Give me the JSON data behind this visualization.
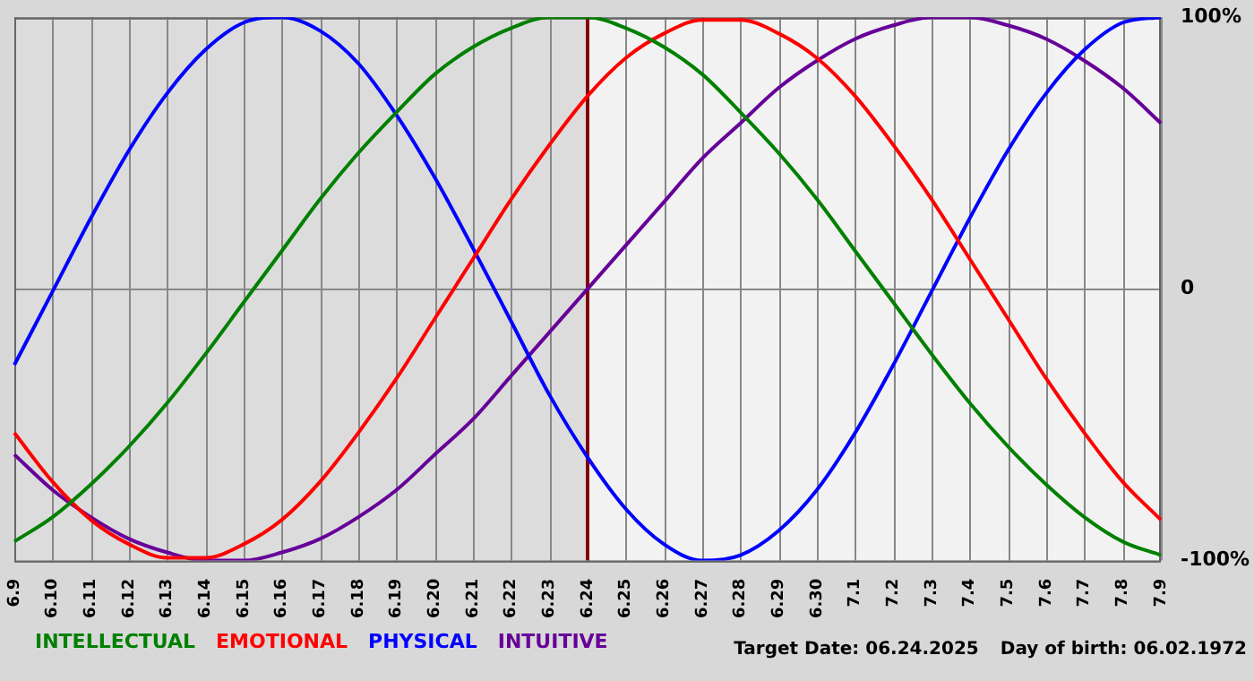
{
  "chart_data": {
    "type": "line",
    "categories": [
      "6.9",
      "6.10",
      "6.11",
      "6.12",
      "6.13",
      "6.14",
      "6.15",
      "6.16",
      "6.17",
      "6.18",
      "6.19",
      "6.20",
      "6.21",
      "6.22",
      "6.23",
      "6.24",
      "6.25",
      "6.26",
      "6.27",
      "6.28",
      "6.29",
      "6.30",
      "7.1",
      "7.2",
      "7.3",
      "7.4",
      "7.5",
      "7.6",
      "7.7",
      "7.8",
      "7.9"
    ],
    "series": [
      {
        "name": "INTELLECTUAL",
        "color": "#008000",
        "values": [
          -93,
          -84,
          -72,
          -58,
          -42,
          -24,
          -5,
          14,
          33,
          50,
          65,
          79,
          89,
          96,
          100,
          100,
          96,
          89,
          79,
          65,
          50,
          33,
          14,
          -5,
          -24,
          -42,
          -58,
          -72,
          -84,
          -93,
          -98
        ]
      },
      {
        "name": "EMOTIONAL",
        "color": "#ff0000",
        "values": [
          -53,
          -71,
          -85,
          -94,
          -99,
          -99,
          -94,
          -85,
          -71,
          -53,
          -33,
          -11,
          11,
          33,
          53,
          71,
          85,
          94,
          99,
          99,
          94,
          85,
          71,
          53,
          33,
          11,
          -11,
          -33,
          -53,
          -71,
          -85
        ]
      },
      {
        "name": "PHYSICAL",
        "color": "#0000ff",
        "values": [
          -28,
          -1,
          26,
          51,
          72,
          88,
          98,
          100,
          95,
          83,
          64,
          41,
          15,
          -12,
          -39,
          -62,
          -81,
          -94,
          -100,
          -98,
          -89,
          -74,
          -53,
          -28,
          -1,
          26,
          51,
          72,
          88,
          98,
          100
        ]
      },
      {
        "name": "INTUITIVE",
        "color": "#660099",
        "values": [
          -61,
          -74,
          -84,
          -92,
          -97,
          -100,
          -100,
          -97,
          -92,
          -84,
          -74,
          -61,
          -48,
          -32,
          -16,
          0,
          16,
          32,
          48,
          61,
          74,
          84,
          92,
          97,
          100,
          100,
          97,
          92,
          84,
          74,
          61
        ]
      }
    ],
    "ylim": [
      -100,
      100
    ],
    "yticks": [
      {
        "value": -100,
        "label": "-100%"
      },
      0,
      {
        "value": 100,
        "label": "100%"
      }
    ],
    "grid": true,
    "legend": "bottom left",
    "marker": "none",
    "line_style": "solid",
    "ref_lines": [
      {
        "axis": "x",
        "value": "6.24",
        "color": "#800000"
      }
    ],
    "bands": [
      {
        "axis": "x",
        "from": "6.9",
        "to": "6.24",
        "color": "#dcdcdc"
      }
    ],
    "annotations": [
      "Target Date: 06.24.2025",
      "Day of birth: 06.02.1972"
    ]
  }
}
